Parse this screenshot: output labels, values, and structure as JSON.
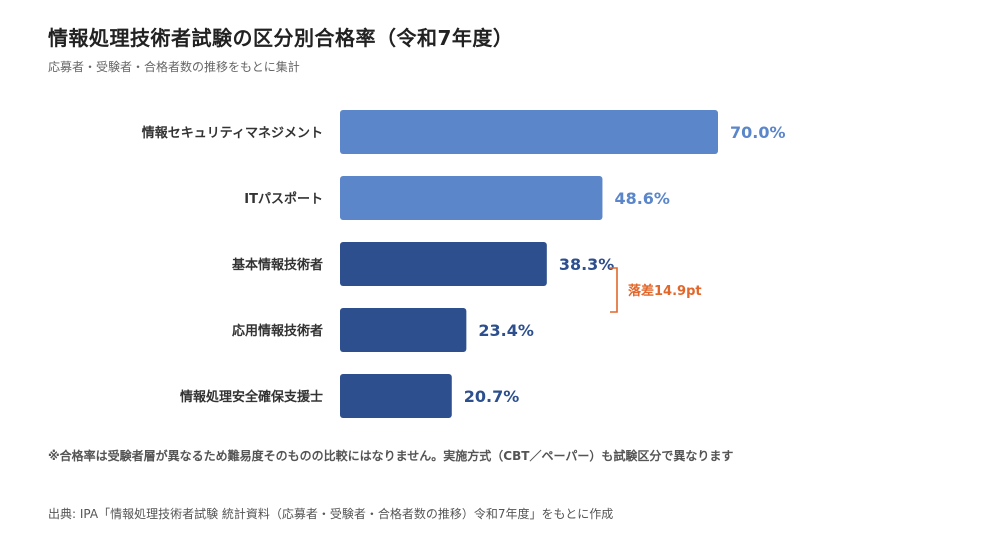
{
  "title": "情報処理技術者試験の区分別合格率（令和7年度）",
  "subtitle": "応募者・受験者・合格者数の推移をもとに集計",
  "note": "※合格率は受験者層が異なるため難易度そのものの比較にはなりません。実施方式（CBT／ペーパー）も試験区分で異なります",
  "source": "出典: IPA「情報処理技術者試験 統計資料（応募者・受験者・合格者数の推移）令和7年度」をもとに作成",
  "colors": {
    "light_bar": "#5b86c9",
    "dark_bar": "#2d4f8e",
    "annotation": "#e2672b"
  },
  "chart_data": {
    "type": "bar",
    "orientation": "horizontal",
    "categories": [
      "情報セキュリティマネジメント",
      "ITパスポート",
      "基本情報技術者",
      "応用情報技術者",
      "情報処理安全確保支援士"
    ],
    "values": [
      70.0,
      48.6,
      38.3,
      23.4,
      20.7
    ],
    "value_labels": [
      "70.0%",
      "48.6%",
      "38.3%",
      "23.4%",
      "20.7%"
    ],
    "bar_color_groups": [
      "light",
      "light",
      "dark",
      "dark",
      "dark"
    ],
    "xlim": [
      0,
      70
    ],
    "grid": false,
    "annotation": {
      "text": "落差14.9pt",
      "between": [
        "基本情報技術者",
        "応用情報技術者"
      ]
    }
  }
}
